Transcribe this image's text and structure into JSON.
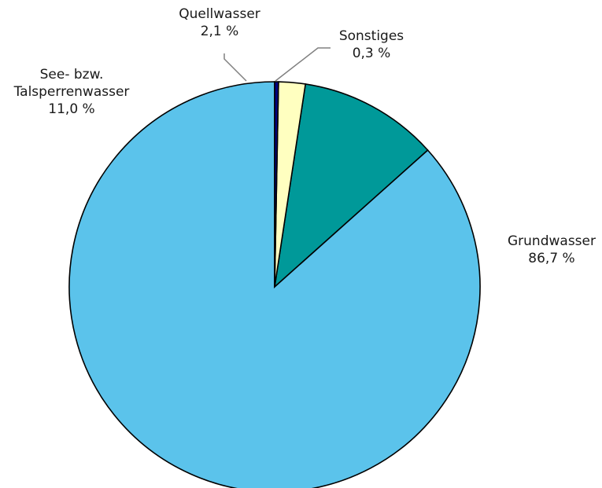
{
  "chart_data": {
    "type": "pie",
    "slices": [
      {
        "name_lines": [
          "Grundwasser"
        ],
        "value": 86.7,
        "value_label": "86,7 %",
        "color": "#5BC3EB"
      },
      {
        "name_lines": [
          "See- bzw.",
          "Talsperrenwasser"
        ],
        "value": 11.0,
        "value_label": "11,0 %",
        "color": "#009999"
      },
      {
        "name_lines": [
          "Quellwasser"
        ],
        "value": 2.1,
        "value_label": "2,1 %",
        "color": "#FFFFC0"
      },
      {
        "name_lines": [
          "Sonstiges"
        ],
        "value": 0.3,
        "value_label": "0,3 %",
        "color": "#000080"
      }
    ],
    "start_direction": "12 o'clock",
    "rotation": "counter-clockwise",
    "legend": "none"
  }
}
